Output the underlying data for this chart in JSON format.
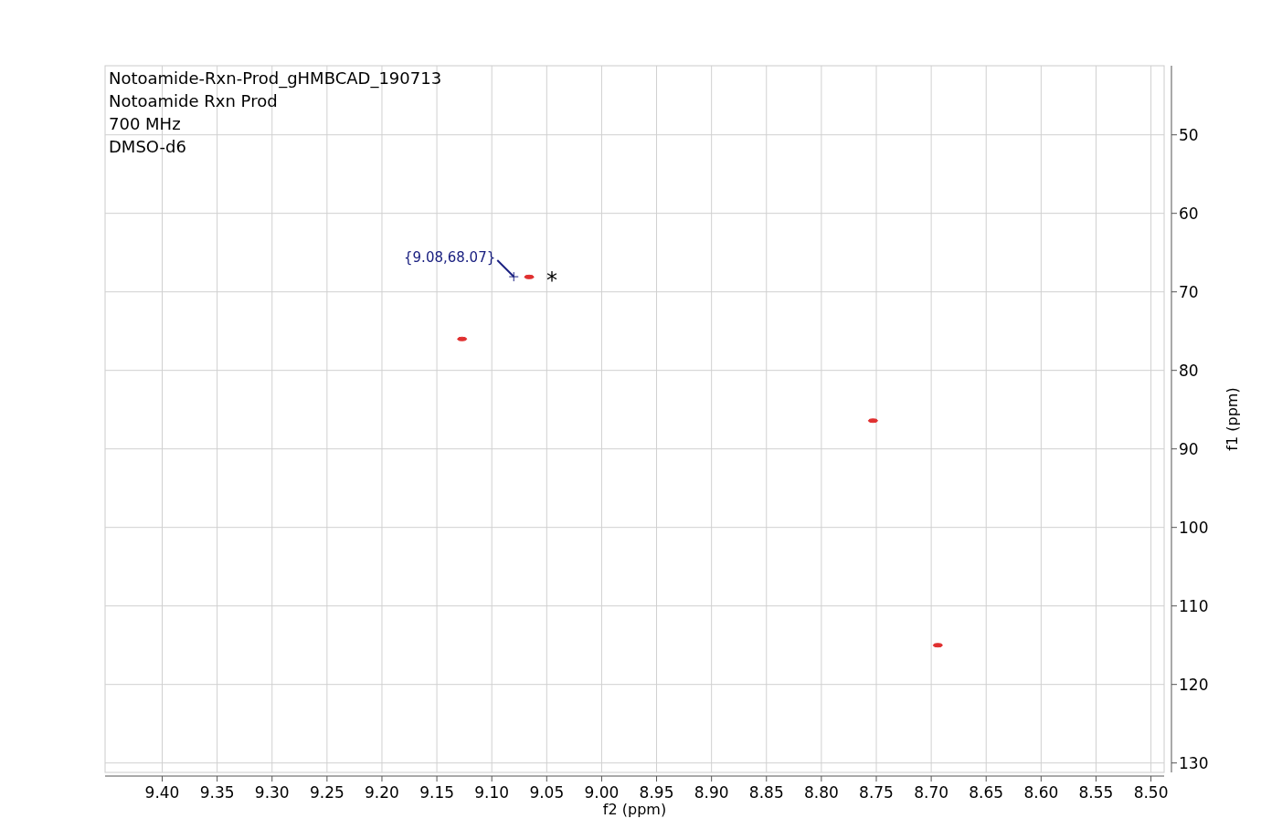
{
  "chart_data": {
    "type": "scatter",
    "xlabel": "f2 (ppm)",
    "ylabel": "f1 (ppm)",
    "x": [
      9.127,
      9.066,
      8.753,
      8.694
    ],
    "values": [
      76.0,
      68.1,
      86.4,
      115.0
    ],
    "color": "#e03030",
    "xlim": [
      9.452,
      8.488
    ],
    "ylim": [
      131.2,
      41.2
    ],
    "xticks": [
      {
        "value": 9.4,
        "label": "9.40"
      },
      9.35,
      {
        "value": 9.3,
        "label": "9.30"
      },
      9.25,
      {
        "value": 9.2,
        "label": "9.20"
      },
      9.15,
      {
        "value": 9.1,
        "label": "9.10"
      },
      9.05,
      {
        "value": 9.0,
        "label": "9.00"
      },
      8.95,
      {
        "value": 8.9,
        "label": "8.90"
      },
      8.85,
      {
        "value": 8.8,
        "label": "8.80"
      },
      8.75,
      {
        "value": 8.7,
        "label": "8.70"
      },
      8.65,
      {
        "value": 8.6,
        "label": "8.60"
      },
      8.55,
      {
        "value": 8.5,
        "label": "8.50"
      }
    ],
    "yticks": [
      50,
      60,
      70,
      80,
      90,
      100,
      110,
      120,
      130
    ],
    "grid": true,
    "annotations": [
      "Notoamide-Rxn-Prod_gHMBCAD_190713",
      "Notoamide Rxn Prod",
      "700 MHz",
      "DMSO-d6",
      {
        "text": "{9.08,68.07}",
        "x": 9.08,
        "y": 68.07
      },
      {
        "text": "*",
        "x": 9.066,
        "y": 68.1
      }
    ]
  }
}
